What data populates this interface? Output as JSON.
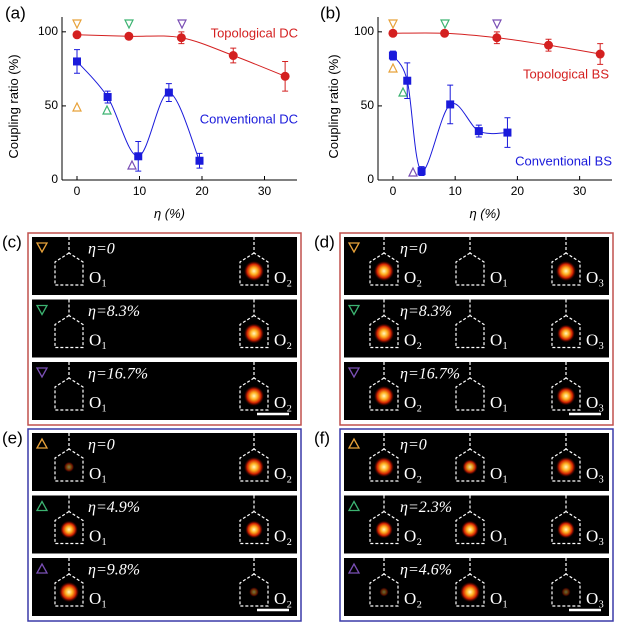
{
  "chart_data": [
    {
      "type": "line",
      "panel_label": "(a)",
      "ylabel": "Coupling ratio (%)",
      "xlabel": "η (%)",
      "xlim": [
        -2.4,
        35.2
      ],
      "ylim": [
        0,
        110
      ],
      "xticks": [
        0,
        10,
        20,
        30
      ],
      "yticks": [
        0,
        50,
        100
      ],
      "series": [
        {
          "name": "Topological DC",
          "color": "#d42020",
          "marker": "circle",
          "x": [
            0,
            8.3,
            16.7,
            25,
            33.3
          ],
          "values": [
            98,
            97,
            96,
            84,
            70
          ],
          "errors": [
            1,
            1,
            4,
            5,
            10
          ]
        },
        {
          "name": "Conventional DC",
          "color": "#1a1adb",
          "marker": "square",
          "x": [
            0,
            4.9,
            9.8,
            14.7,
            19.6
          ],
          "values": [
            80,
            56,
            16,
            59,
            13
          ],
          "errors": [
            8,
            4,
            10,
            6,
            5
          ]
        }
      ]
    },
    {
      "type": "line",
      "panel_label": "(b)",
      "ylabel": "Coupling ratio (%)",
      "xlabel": "η (%)",
      "xlim": [
        -2.4,
        35.2
      ],
      "ylim": [
        0,
        110
      ],
      "xticks": [
        0,
        10,
        20,
        30
      ],
      "yticks": [
        0,
        50,
        100
      ],
      "series": [
        {
          "name": "Topological BS",
          "color": "#d42020",
          "marker": "circle",
          "x": [
            0,
            8.3,
            16.7,
            25,
            33.3
          ],
          "values": [
            99,
            99,
            96,
            91,
            85
          ],
          "errors": [
            1,
            1,
            4,
            4,
            7
          ]
        },
        {
          "name": "Conventional BS",
          "color": "#1a1adb",
          "marker": "square",
          "x": [
            0,
            2.3,
            4.6,
            9.2,
            13.8,
            18.4
          ],
          "values": [
            84,
            67,
            6,
            51,
            33,
            32
          ],
          "errors": [
            3,
            12,
            3,
            13,
            4,
            10
          ]
        }
      ]
    }
  ],
  "image_panels": [
    {
      "label": "(c)",
      "frame_color": "#c0504d",
      "rows": [
        {
          "eta": "η=0",
          "outputs": [
            "O₁",
            "O₂"
          ]
        },
        {
          "eta": "η=8.3%",
          "outputs": [
            "O₁",
            "O₂"
          ]
        },
        {
          "eta": "η=16.7%",
          "outputs": [
            "O₁",
            "O₂"
          ]
        }
      ]
    },
    {
      "label": "(d)",
      "frame_color": "#c0504d",
      "rows": [
        {
          "eta": "η=0",
          "outputs": [
            "O₂",
            "O₁",
            "O₃"
          ]
        },
        {
          "eta": "η=8.3%",
          "outputs": [
            "O₂",
            "O₁",
            "O₃"
          ]
        },
        {
          "eta": "η=16.7%",
          "outputs": [
            "O₂",
            "O₁",
            "O₃"
          ]
        }
      ]
    },
    {
      "label": "(e)",
      "frame_color": "#3a3aa8",
      "rows": [
        {
          "eta": "η=0",
          "outputs": [
            "O₁",
            "O₂"
          ]
        },
        {
          "eta": "η=4.9%",
          "outputs": [
            "O₁",
            "O₂"
          ]
        },
        {
          "eta": "η=9.8%",
          "outputs": [
            "O₁",
            "O₂"
          ]
        }
      ]
    },
    {
      "label": "(f)",
      "frame_color": "#3a3aa8",
      "rows": [
        {
          "eta": "η=0",
          "outputs": [
            "O₂",
            "O₁",
            "O₃"
          ]
        },
        {
          "eta": "η=2.3%",
          "outputs": [
            "O₂",
            "O₁",
            "O₃"
          ]
        },
        {
          "eta": "η=4.6%",
          "outputs": [
            "O₂",
            "O₁",
            "O₃"
          ]
        }
      ]
    }
  ]
}
